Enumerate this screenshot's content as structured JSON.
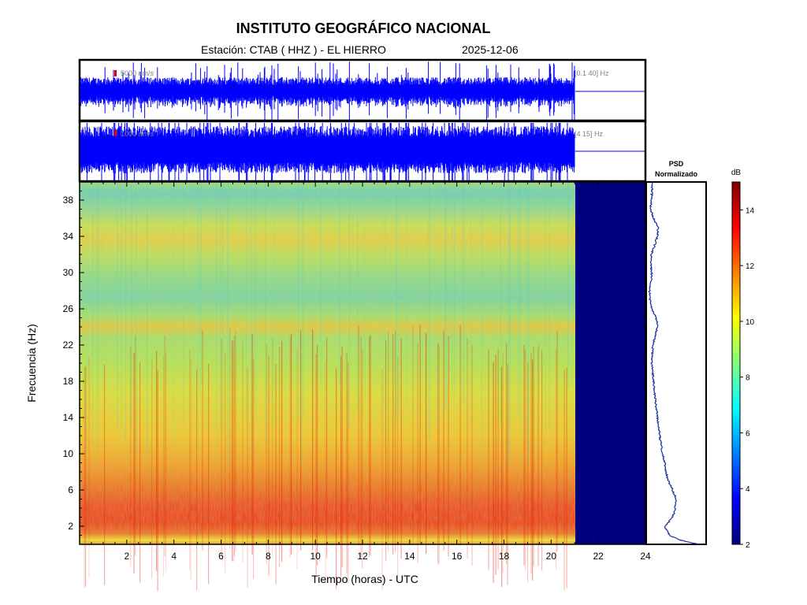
{
  "header": {
    "title": "INSTITUTO GEOGRÁFICO NACIONAL",
    "station": "Estación:  CTAB ( HHZ ) - EL HIERRO",
    "date": "2025-12-06"
  },
  "traces": [
    {
      "scale": "5000 nm/s",
      "band": "[0.1 40] Hz"
    },
    {
      "scale": "1000 nm/s",
      "band": "[4 15] Hz"
    }
  ],
  "psd": {
    "title_line1": "PSD",
    "title_line2": "Normalizado"
  },
  "colorbar": {
    "unit": "dB",
    "ticks": [
      2,
      4,
      6,
      8,
      10,
      12,
      14
    ],
    "range": [
      2,
      15
    ]
  },
  "colors": {
    "trace": "#0000ff",
    "nodata": "#00007f",
    "psd_line": "#1a2f9a"
  },
  "chart_data": {
    "type": "heatmap",
    "title": "INSTITUTO GEOGRÁFICO NACIONAL",
    "xlabel": "Tiempo (horas) - UTC",
    "ylabel": "Frecuencia  (Hz)",
    "xlim": [
      0,
      24
    ],
    "ylim": [
      0,
      40
    ],
    "xticks": [
      2,
      4,
      6,
      8,
      10,
      12,
      14,
      16,
      18,
      20,
      22,
      24
    ],
    "yticks": [
      2,
      6,
      10,
      14,
      18,
      22,
      26,
      30,
      34,
      38
    ],
    "data_end_hour": 21,
    "colorbar_units": "dB",
    "colorbar_range": [
      2,
      15
    ],
    "psd_profile": {
      "freq_hz": [
        0,
        0.5,
        1,
        2,
        3,
        4,
        5,
        6,
        7,
        8,
        9,
        10,
        12,
        14,
        16,
        18,
        20,
        22,
        23,
        24,
        25,
        26,
        27,
        28,
        29,
        30,
        31,
        32,
        33,
        34,
        35,
        36,
        37,
        38,
        39,
        40
      ],
      "level": [
        0.9,
        0.55,
        0.38,
        0.3,
        0.44,
        0.48,
        0.5,
        0.44,
        0.36,
        0.32,
        0.3,
        0.26,
        0.21,
        0.17,
        0.13,
        0.1,
        0.07,
        0.09,
        0.13,
        0.17,
        0.15,
        0.07,
        0.04,
        0.03,
        0.05,
        0.07,
        0.05,
        0.06,
        0.12,
        0.17,
        0.18,
        0.1,
        0.05,
        0.06,
        0.08,
        0.07
      ]
    }
  }
}
